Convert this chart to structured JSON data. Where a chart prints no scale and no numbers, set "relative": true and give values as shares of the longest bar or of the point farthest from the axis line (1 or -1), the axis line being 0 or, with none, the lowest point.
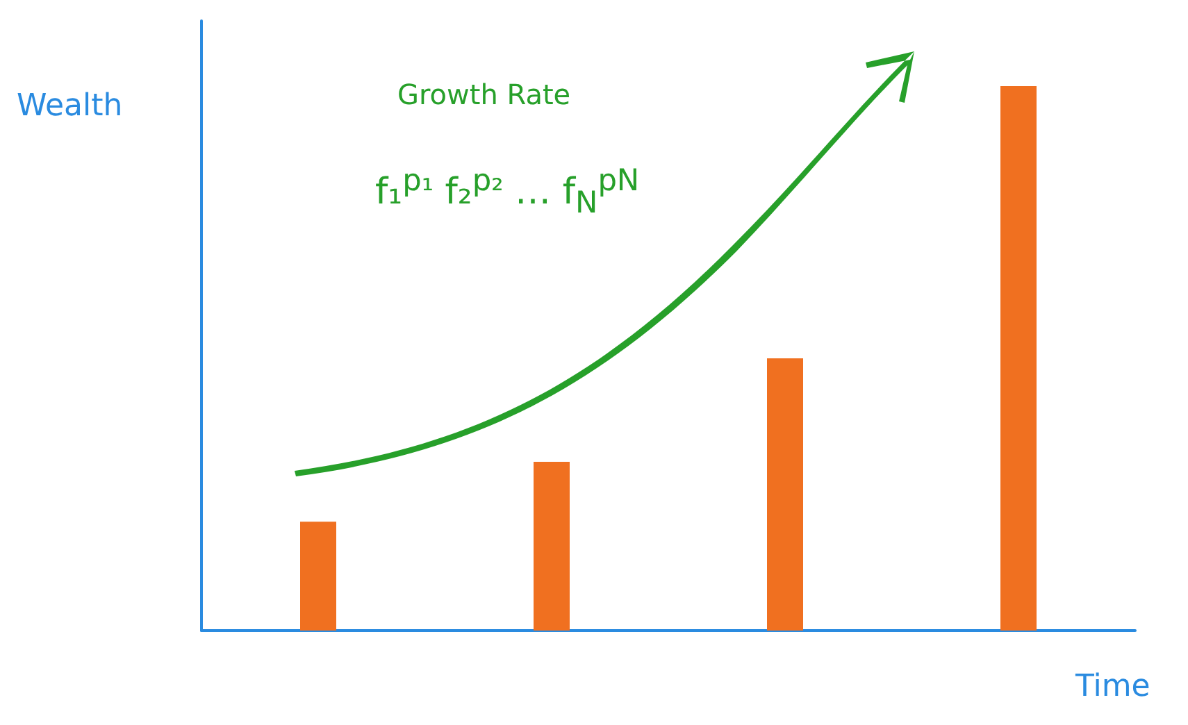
{
  "chart_data": {
    "type": "bar",
    "xlabel": "Time",
    "ylabel": "Wealth",
    "categories": [
      null,
      null,
      null,
      null
    ],
    "relative": true,
    "values": [
      0.2,
      0.31,
      0.5,
      1
    ],
    "color": "#f07020",
    "grid": false,
    "annotations": [
      "Growth Rate",
      "f₁$^{p₁}$ f₂$^{p₂}$ … f$_{N}$$^{pN}$"
    ]
  }
}
